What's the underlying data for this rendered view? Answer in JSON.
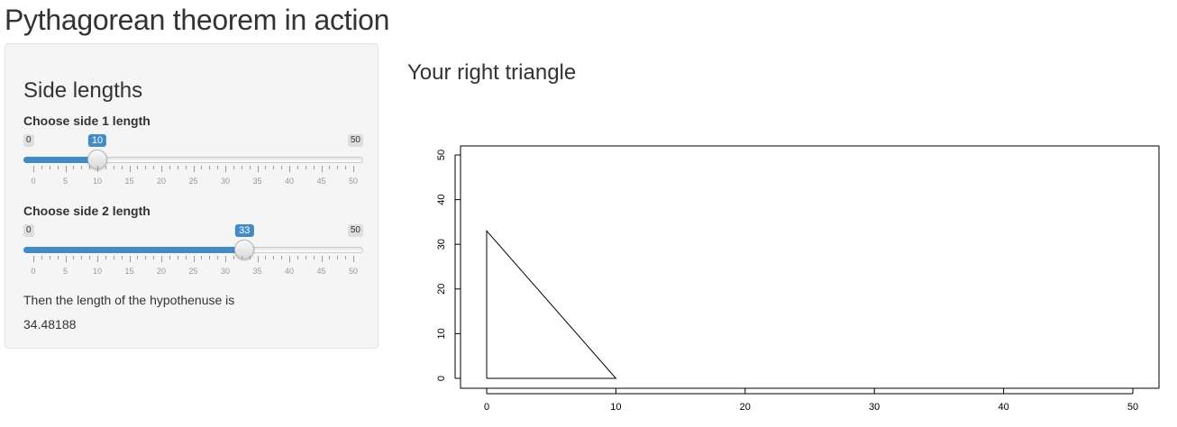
{
  "page": {
    "title": "Pythagorean theorem in action"
  },
  "sidebar": {
    "heading": "Side lengths",
    "slider1": {
      "label": "Choose side 1 length",
      "min": "0",
      "max": "50",
      "value": 10,
      "value_label": "10",
      "tick_labels": [
        "0",
        "5",
        "10",
        "15",
        "20",
        "25",
        "30",
        "35",
        "40",
        "45",
        "50"
      ]
    },
    "slider2": {
      "label": "Choose side 2 length",
      "min": "0",
      "max": "50",
      "value": 33,
      "value_label": "33",
      "tick_labels": [
        "0",
        "5",
        "10",
        "15",
        "20",
        "25",
        "30",
        "35",
        "40",
        "45",
        "50"
      ]
    },
    "output_label": "Then the length of the hypothenuse is",
    "output_value": "34.48188"
  },
  "main": {
    "heading": "Your right triangle"
  },
  "chart_data": {
    "type": "line",
    "xlim": [
      0,
      50
    ],
    "ylim": [
      0,
      50
    ],
    "x_ticks": [
      "0",
      "10",
      "20",
      "30",
      "40",
      "50"
    ],
    "y_ticks": [
      "0",
      "10",
      "20",
      "30",
      "40",
      "50"
    ],
    "x": [
      0,
      0,
      10,
      0
    ],
    "y": [
      0,
      33,
      0,
      0
    ],
    "grid": false,
    "colors": {
      "line": "#000000",
      "accent": "#428bca"
    }
  }
}
